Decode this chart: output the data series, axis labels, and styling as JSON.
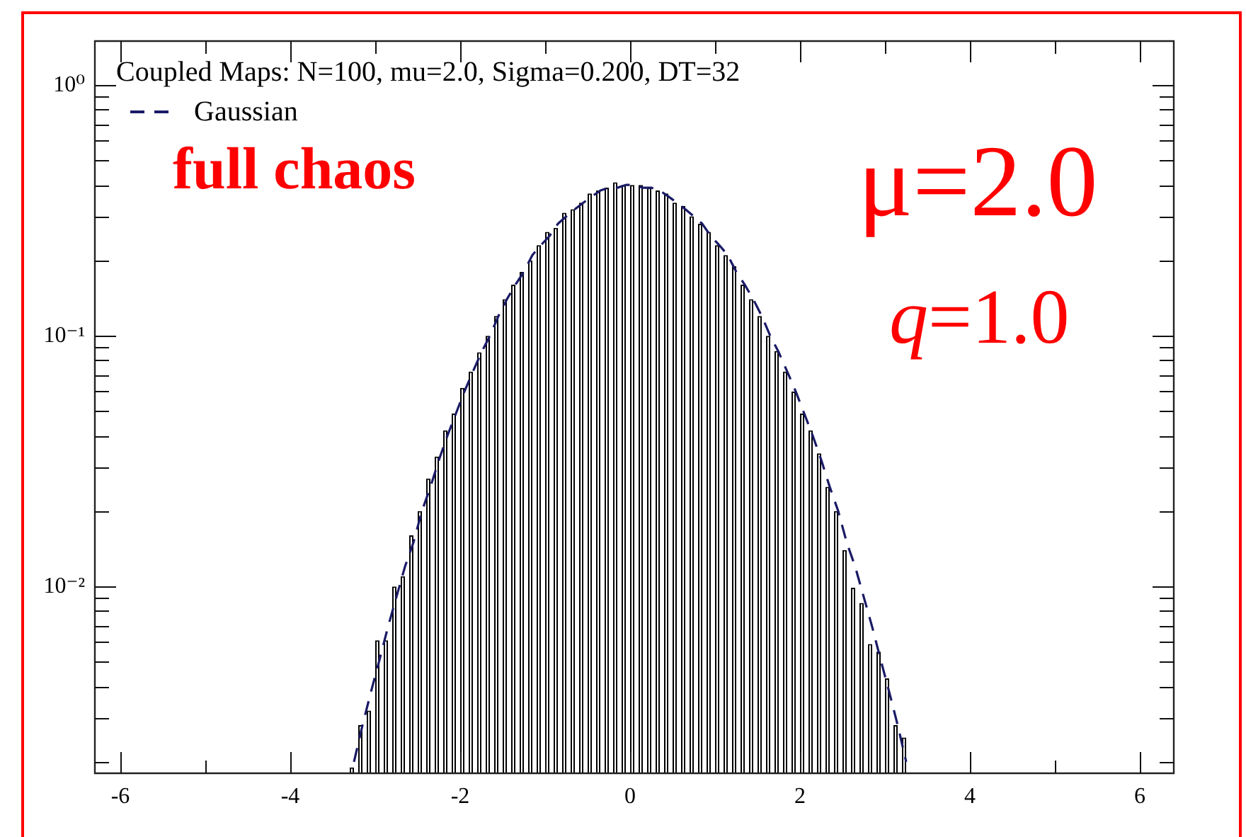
{
  "chart_data": {
    "type": "histogram",
    "bins": [
      -3.3,
      -3.2,
      -3.1,
      -3.0,
      -2.9,
      -2.8,
      -2.7,
      -2.6,
      -2.5,
      -2.4,
      -2.3,
      -2.2,
      -2.1,
      -2.0,
      -1.9,
      -1.8,
      -1.7,
      -1.6,
      -1.5,
      -1.4,
      -1.3,
      -1.2,
      -1.1,
      -1.0,
      -0.9,
      -0.8,
      -0.7,
      -0.6,
      -0.5,
      -0.4,
      -0.3,
      -0.2,
      -0.1,
      0,
      0.1,
      0.2,
      0.3,
      0.4,
      0.5,
      0.6,
      0.7,
      0.8,
      0.9,
      1.0,
      1.1,
      1.2,
      1.3,
      1.4,
      1.5,
      1.6,
      1.7,
      1.8,
      1.9,
      2.0,
      2.1,
      2.2,
      2.3,
      2.4,
      2.5,
      2.6,
      2.7,
      2.8,
      2.9,
      3.0,
      3.1,
      3.2,
      3.3
    ],
    "xlim": [
      -6.3,
      6.4
    ],
    "xticks": [
      -6,
      {
        "value": -5,
        "label": null
      },
      -4,
      {
        "value": -3,
        "label": null
      },
      -2,
      {
        "value": -1,
        "label": null
      },
      0,
      {
        "value": 1,
        "label": null
      },
      2,
      {
        "value": 3,
        "label": null
      },
      4,
      {
        "value": 5,
        "label": null
      },
      6
    ],
    "ylim": [
      0.0018,
      1.5
    ],
    "yticks": [
      {
        "value": 0.002,
        "label": null
      },
      {
        "value": 0.003,
        "label": null
      },
      {
        "value": 0.004,
        "label": null
      },
      {
        "value": 0.005,
        "label": null
      },
      {
        "value": 0.006,
        "label": null
      },
      {
        "value": 0.007,
        "label": null
      },
      {
        "value": 0.008,
        "label": null
      },
      {
        "value": 0.009,
        "label": null
      },
      {
        "value": 0.01,
        "label": "10⁻²"
      },
      {
        "value": 0.02,
        "label": null
      },
      {
        "value": 0.03,
        "label": null
      },
      {
        "value": 0.04,
        "label": null
      },
      {
        "value": 0.05,
        "label": null
      },
      {
        "value": 0.06,
        "label": null
      },
      {
        "value": 0.07,
        "label": null
      },
      {
        "value": 0.08,
        "label": null
      },
      {
        "value": 0.09,
        "label": null
      },
      {
        "value": 0.1,
        "label": "10⁻¹"
      },
      {
        "value": 0.2,
        "label": null
      },
      {
        "value": 0.3,
        "label": null
      },
      {
        "value": 0.4,
        "label": null
      },
      {
        "value": 0.5,
        "label": null
      },
      {
        "value": 0.6,
        "label": null
      },
      {
        "value": 0.7,
        "label": null
      },
      {
        "value": 0.8,
        "label": null
      },
      {
        "value": 0.9,
        "label": null
      },
      {
        "value": 1,
        "label": "10⁰"
      }
    ],
    "log": true,
    "legend": "top left",
    "legend_title": "Coupled Maps: N=100, mu=2.0, Sigma=0.200, DT=32",
    "annotations": [
      "full chaos",
      "μ=2.0",
      "q=1.0"
    ],
    "series": [
      {
        "color": "#000000",
        "values": [
          0.0019,
          0.0028,
          0.0032,
          0.0061,
          0.0061,
          0.01,
          0.011,
          0.016,
          0.02,
          0.027,
          0.033,
          0.042,
          0.049,
          0.062,
          0.072,
          0.086,
          0.1,
          0.12,
          0.14,
          0.16,
          0.18,
          0.2,
          0.23,
          0.26,
          0.27,
          0.31,
          0.32,
          0.34,
          0.37,
          0.38,
          0.39,
          0.41,
          0.4,
          0.4,
          0.4,
          0.39,
          0.38,
          0.37,
          0.34,
          0.33,
          0.3,
          0.28,
          0.26,
          0.23,
          0.21,
          0.19,
          0.16,
          0.14,
          0.12,
          0.1,
          0.087,
          0.072,
          0.06,
          0.049,
          0.042,
          0.034,
          0.025,
          0.02,
          0.014,
          0.0099,
          0.0086,
          0.0059,
          0.0055,
          0.0043,
          0.0028,
          0.0025
        ]
      },
      {
        "type": "line",
        "name": "Gaussian",
        "color": "#1a1a66",
        "line_style": "dashed",
        "x": [
          -3.25,
          -3.15,
          -3.05,
          -2.95,
          -2.85,
          -2.75,
          -2.65,
          -2.55,
          -2.45,
          -2.35,
          -2.25,
          -2.15,
          -2.05,
          -1.95,
          -1.85,
          -1.75,
          -1.65,
          -1.55,
          -1.45,
          -1.35,
          -1.25,
          -1.15,
          -1.05,
          -0.95,
          -0.85,
          -0.75,
          -0.65,
          -0.55,
          -0.45,
          -0.35,
          -0.25,
          -0.15,
          -0.05,
          0.05,
          0.15,
          0.25,
          0.35,
          0.45,
          0.55,
          0.65,
          0.75,
          0.85,
          0.95,
          1.05,
          1.15,
          1.25,
          1.35,
          1.45,
          1.55,
          1.65,
          1.75,
          1.85,
          1.95,
          2.05,
          2.15,
          2.25,
          2.35,
          2.45,
          2.55,
          2.65,
          2.75,
          2.85,
          2.95,
          3.05,
          3.15,
          3.25
        ],
        "values": [
          0.002,
          0.0028,
          0.0038,
          0.0051,
          0.0069,
          0.0091,
          0.012,
          0.015,
          0.02,
          0.025,
          0.032,
          0.04,
          0.049,
          0.06,
          0.072,
          0.086,
          0.1,
          0.12,
          0.14,
          0.16,
          0.18,
          0.21,
          0.23,
          0.25,
          0.28,
          0.3,
          0.32,
          0.34,
          0.36,
          0.38,
          0.39,
          0.39,
          0.4,
          0.4,
          0.39,
          0.39,
          0.38,
          0.36,
          0.34,
          0.32,
          0.3,
          0.28,
          0.25,
          0.23,
          0.21,
          0.18,
          0.16,
          0.14,
          0.12,
          0.1,
          0.086,
          0.072,
          0.06,
          0.049,
          0.04,
          0.032,
          0.025,
          0.02,
          0.015,
          0.012,
          0.0091,
          0.0069,
          0.0051,
          0.0038,
          0.0028,
          0.002
        ]
      }
    ]
  }
}
